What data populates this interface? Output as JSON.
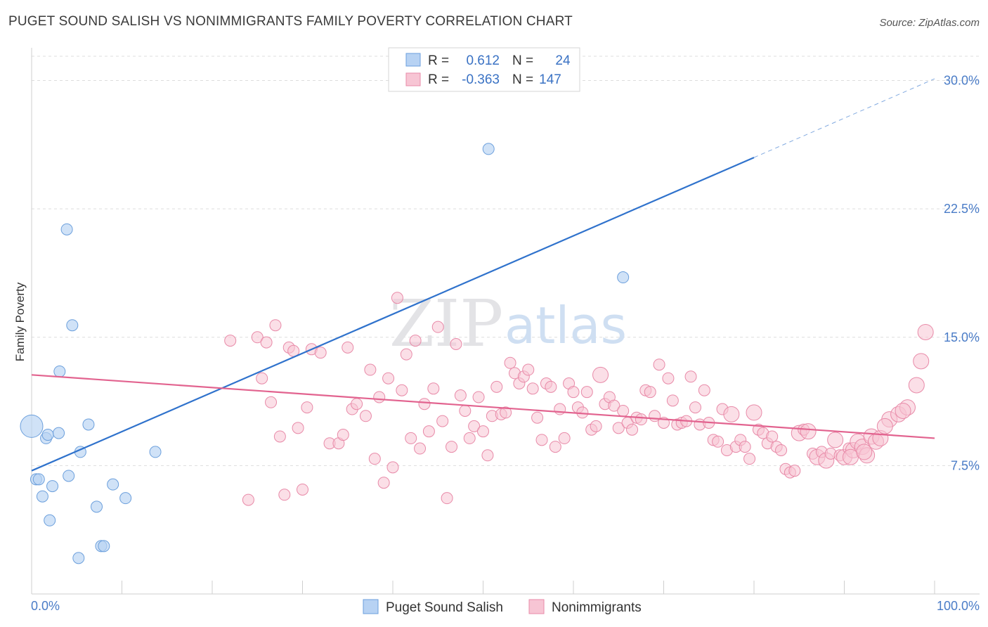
{
  "title": "PUGET SOUND SALISH VS NONIMMIGRANTS FAMILY POVERTY CORRELATION CHART",
  "source": "Source: ZipAtlas.com",
  "watermark": {
    "zip": "ZIP",
    "atlas": "atlas"
  },
  "colors": {
    "blue_fill": "#b7d2f3",
    "blue_stroke": "#6b9fdc",
    "blue_line": "#2f72cc",
    "pink_fill": "#f7c5d4",
    "pink_stroke": "#e88aa8",
    "pink_line": "#e2638f",
    "tick_text": "#4a7cc7",
    "grid": "#dddddd"
  },
  "legend_stats": [
    {
      "r_label": "R =",
      "r_value": "0.612",
      "n_label": "N =",
      "n_value": "24"
    },
    {
      "r_label": "R =",
      "r_value": "-0.363",
      "n_label": "N =",
      "n_value": "147"
    }
  ],
  "chart_data": {
    "type": "scatter",
    "title": "PUGET SOUND SALISH VS NONIMMIGRANTS FAMILY POVERTY CORRELATION CHART",
    "xlabel": "",
    "ylabel": "Family Poverty",
    "xlim": [
      0,
      100
    ],
    "ylim": [
      0,
      31.5
    ],
    "x_tick_labels": [
      "0.0%",
      "100.0%"
    ],
    "y_ticks": [
      7.5,
      15.0,
      22.5,
      30.0
    ],
    "y_tick_labels": [
      "7.5%",
      "15.0%",
      "22.5%",
      "30.0%"
    ],
    "grid": true,
    "legend_position": "bottom-center",
    "series": [
      {
        "name": "Puget Sound Salish",
        "points": [
          [
            0.0,
            9.8,
            3
          ],
          [
            0.5,
            6.7,
            1
          ],
          [
            0.8,
            6.7,
            1
          ],
          [
            1.2,
            5.7,
            1
          ],
          [
            1.6,
            9.1,
            1
          ],
          [
            1.8,
            9.3,
            1
          ],
          [
            2.0,
            4.3,
            1
          ],
          [
            2.3,
            6.3,
            1
          ],
          [
            3.0,
            9.4,
            1
          ],
          [
            3.1,
            13.0,
            1
          ],
          [
            3.9,
            21.3,
            1
          ],
          [
            4.1,
            6.9,
            1
          ],
          [
            4.5,
            15.7,
            1
          ],
          [
            5.2,
            2.1,
            1
          ],
          [
            5.4,
            8.3,
            1
          ],
          [
            6.3,
            9.9,
            1
          ],
          [
            7.2,
            5.1,
            1
          ],
          [
            7.7,
            2.8,
            1
          ],
          [
            8.0,
            2.8,
            1
          ],
          [
            9.0,
            6.4,
            1
          ],
          [
            10.4,
            5.6,
            1
          ],
          [
            13.7,
            8.3,
            1
          ],
          [
            50.6,
            26.0,
            1
          ],
          [
            65.5,
            18.5,
            1
          ]
        ],
        "trend": {
          "x0": 0,
          "y0": 7.2,
          "x1": 80,
          "y1": 25.5,
          "x_dash_end": 100,
          "y_dash_end": 30.1
        }
      },
      {
        "name": "Nonimmigrants",
        "points": [
          [
            22.0,
            14.8,
            1
          ],
          [
            24.0,
            5.5,
            1
          ],
          [
            25.0,
            15.0,
            1
          ],
          [
            25.5,
            12.6,
            1
          ],
          [
            26.0,
            14.7,
            1
          ],
          [
            26.5,
            11.2,
            1
          ],
          [
            27.0,
            15.7,
            1
          ],
          [
            27.5,
            9.2,
            1
          ],
          [
            28.0,
            5.8,
            1
          ],
          [
            28.5,
            14.4,
            1
          ],
          [
            29.0,
            14.2,
            1
          ],
          [
            29.5,
            9.7,
            1
          ],
          [
            30.0,
            6.1,
            1
          ],
          [
            30.5,
            10.9,
            1
          ],
          [
            31.0,
            14.3,
            1
          ],
          [
            32.0,
            14.1,
            1
          ],
          [
            33.0,
            8.8,
            1
          ],
          [
            34.0,
            8.8,
            1
          ],
          [
            34.5,
            9.3,
            1
          ],
          [
            35.0,
            14.4,
            1
          ],
          [
            35.5,
            10.8,
            1
          ],
          [
            36.0,
            11.1,
            1
          ],
          [
            37.0,
            10.4,
            1
          ],
          [
            37.5,
            13.1,
            1
          ],
          [
            38.0,
            7.9,
            1
          ],
          [
            38.5,
            11.5,
            1
          ],
          [
            39.0,
            6.5,
            1
          ],
          [
            39.5,
            12.6,
            1
          ],
          [
            40.0,
            7.4,
            1
          ],
          [
            40.5,
            17.3,
            1
          ],
          [
            41.0,
            11.9,
            1
          ],
          [
            41.5,
            14.0,
            1
          ],
          [
            42.0,
            9.1,
            1
          ],
          [
            42.5,
            14.8,
            1
          ],
          [
            43.0,
            8.5,
            1
          ],
          [
            43.5,
            11.1,
            1
          ],
          [
            44.0,
            9.5,
            1
          ],
          [
            44.5,
            12.0,
            1
          ],
          [
            45.0,
            15.6,
            1
          ],
          [
            45.5,
            10.1,
            1
          ],
          [
            46.0,
            5.6,
            1
          ],
          [
            46.5,
            8.6,
            1
          ],
          [
            47.0,
            14.6,
            1
          ],
          [
            47.5,
            11.6,
            1
          ],
          [
            48.0,
            10.7,
            1
          ],
          [
            48.5,
            9.1,
            1
          ],
          [
            49.0,
            9.8,
            1
          ],
          [
            49.5,
            11.5,
            1
          ],
          [
            50.0,
            9.5,
            1
          ],
          [
            50.5,
            8.1,
            1
          ],
          [
            51.0,
            10.4,
            1
          ],
          [
            51.5,
            12.1,
            1
          ],
          [
            52.0,
            10.5,
            1
          ],
          [
            52.5,
            10.6,
            1
          ],
          [
            53.0,
            13.5,
            1
          ],
          [
            53.5,
            12.9,
            1
          ],
          [
            54.0,
            12.3,
            1
          ],
          [
            54.5,
            12.7,
            1
          ],
          [
            55.0,
            13.1,
            1
          ],
          [
            55.5,
            12.0,
            1
          ],
          [
            56.0,
            10.3,
            1
          ],
          [
            56.5,
            9.0,
            1
          ],
          [
            57.0,
            12.3,
            1
          ],
          [
            57.5,
            12.1,
            1
          ],
          [
            58.0,
            8.6,
            1
          ],
          [
            58.5,
            10.8,
            1
          ],
          [
            59.0,
            9.1,
            1
          ],
          [
            59.5,
            12.3,
            1
          ],
          [
            60.0,
            11.8,
            1
          ],
          [
            60.5,
            10.9,
            1
          ],
          [
            61.0,
            10.6,
            1
          ],
          [
            61.5,
            11.8,
            1
          ],
          [
            62.0,
            9.6,
            1
          ],
          [
            62.5,
            9.8,
            1
          ],
          [
            63.0,
            12.8,
            2
          ],
          [
            63.5,
            11.1,
            1
          ],
          [
            64.0,
            11.5,
            1
          ],
          [
            64.5,
            11.0,
            1
          ],
          [
            65.0,
            9.7,
            1
          ],
          [
            65.5,
            10.7,
            1
          ],
          [
            66.0,
            10.0,
            1
          ],
          [
            66.5,
            9.6,
            1
          ],
          [
            67.0,
            10.3,
            1
          ],
          [
            67.5,
            10.2,
            1
          ],
          [
            68.0,
            11.9,
            1
          ],
          [
            68.5,
            11.8,
            1
          ],
          [
            69.0,
            10.4,
            1
          ],
          [
            69.5,
            13.4,
            1
          ],
          [
            70.0,
            10.0,
            1
          ],
          [
            70.5,
            12.6,
            1
          ],
          [
            71.0,
            11.3,
            1
          ],
          [
            71.5,
            9.9,
            1
          ],
          [
            72.0,
            10.0,
            1
          ],
          [
            72.5,
            10.1,
            1
          ],
          [
            73.0,
            12.7,
            1
          ],
          [
            73.5,
            10.9,
            1
          ],
          [
            74.0,
            9.9,
            1
          ],
          [
            74.5,
            11.9,
            1
          ],
          [
            75.0,
            10.0,
            1
          ],
          [
            75.5,
            9.0,
            1
          ],
          [
            76.0,
            8.9,
            1
          ],
          [
            76.5,
            10.8,
            1
          ],
          [
            77.0,
            8.4,
            1
          ],
          [
            77.5,
            10.5,
            2
          ],
          [
            78.0,
            8.6,
            1
          ],
          [
            78.5,
            9.0,
            1
          ],
          [
            79.0,
            8.6,
            1
          ],
          [
            79.5,
            7.9,
            1
          ],
          [
            80.0,
            10.6,
            2
          ],
          [
            80.5,
            9.6,
            1
          ],
          [
            81.0,
            9.4,
            1
          ],
          [
            81.5,
            8.8,
            1
          ],
          [
            82.0,
            9.2,
            1
          ],
          [
            82.5,
            8.6,
            1
          ],
          [
            83.0,
            8.4,
            1
          ],
          [
            83.5,
            7.3,
            1
          ],
          [
            84.0,
            7.1,
            1
          ],
          [
            84.5,
            7.2,
            1
          ],
          [
            85.0,
            9.4,
            2
          ],
          [
            85.5,
            9.6,
            1
          ],
          [
            86.0,
            9.5,
            2
          ],
          [
            86.5,
            8.2,
            1
          ],
          [
            87.0,
            8.0,
            2
          ],
          [
            87.5,
            8.3,
            1
          ],
          [
            88.0,
            7.8,
            2
          ],
          [
            88.5,
            8.2,
            1
          ],
          [
            89.0,
            9.0,
            2
          ],
          [
            89.5,
            8.1,
            1
          ],
          [
            90.0,
            8.0,
            2
          ],
          [
            90.5,
            8.5,
            1
          ],
          [
            91.0,
            8.4,
            2
          ],
          [
            91.5,
            8.9,
            2
          ],
          [
            92.0,
            8.6,
            2
          ],
          [
            92.5,
            8.1,
            2
          ],
          [
            93.0,
            9.2,
            2
          ],
          [
            93.5,
            8.9,
            2
          ],
          [
            94.0,
            9.1,
            2
          ],
          [
            95.0,
            10.2,
            2
          ],
          [
            96.0,
            10.5,
            2
          ],
          [
            97.0,
            10.9,
            2
          ],
          [
            98.0,
            12.2,
            2
          ],
          [
            98.5,
            13.6,
            2
          ],
          [
            99.0,
            15.3,
            2
          ],
          [
            94.5,
            9.8,
            2
          ],
          [
            96.5,
            10.7,
            2
          ],
          [
            90.7,
            8.0,
            2
          ],
          [
            92.2,
            8.3,
            2
          ]
        ],
        "trend": {
          "x0": 0,
          "y0": 12.8,
          "x1": 100,
          "y1": 9.1
        }
      }
    ]
  },
  "legend": {
    "items": [
      {
        "label": "Puget Sound Salish"
      },
      {
        "label": "Nonimmigrants"
      }
    ]
  }
}
